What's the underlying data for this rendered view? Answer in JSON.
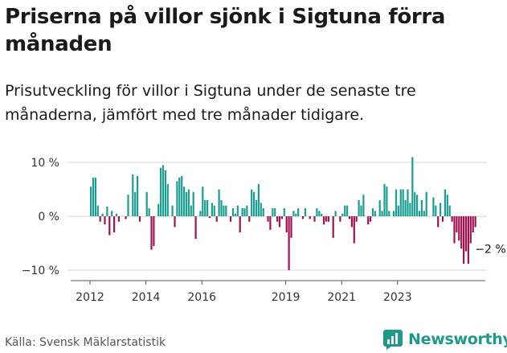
{
  "title": "Priserna på villor sjönk i Sigtuna förra månaden",
  "subtitle": "Prisutveckling för villor i Sigtuna under de senaste tre månaderna, jämfört med tre månader tidigare.",
  "source": "Källa: Svensk Mäklarstatistik",
  "brand": "Newsworthy",
  "colors": {
    "positive": "#1a9e91",
    "negative": "#a3114f",
    "brand": "#1e9a8a"
  },
  "chart_data": {
    "type": "bar",
    "x_start": "2012-01",
    "y_ticks": [
      10,
      0,
      -10
    ],
    "y_tick_labels": [
      "10 %",
      "0 %",
      "−10 %"
    ],
    "x_ticks": [
      "2012",
      "2014",
      "2016",
      "2019",
      "2021",
      "2023"
    ],
    "ylim": [
      -11,
      11.5
    ],
    "annotation": "−2 %",
    "values": [
      5.5,
      7.2,
      7.2,
      2,
      -1,
      0.5,
      -1.5,
      1.8,
      -3.5,
      1,
      -3,
      0.5,
      -1,
      0,
      0,
      -0.5,
      4,
      0,
      7.8,
      4.5,
      7.5,
      -1,
      0,
      0,
      4.5,
      1.5,
      -6.2,
      -5.5,
      0,
      2.3,
      9,
      9.5,
      8.5,
      6,
      0,
      2,
      -2,
      6.5,
      7.2,
      7.5,
      5.5,
      4.5,
      5,
      2,
      4.5,
      -4.2,
      0,
      1,
      5.5,
      3,
      3,
      -0.3,
      2.5,
      2,
      -1,
      5,
      3,
      2,
      2,
      0,
      -1,
      1.5,
      0.5,
      2,
      -3,
      1.5,
      1.5,
      2,
      -1,
      5,
      4.5,
      3,
      6,
      2.5,
      1.5,
      0,
      -1,
      -2.5,
      1.5,
      1.5,
      -1,
      -2,
      -0.5,
      1.5,
      -3,
      -10,
      -4,
      1,
      0.5,
      1.5,
      0,
      -0.5,
      1.5,
      0,
      -0.5,
      0,
      -1,
      1.5,
      1,
      0.5,
      -1.5,
      -1,
      -1,
      0,
      -4,
      1,
      0,
      -1,
      0.5,
      2,
      2,
      -0.5,
      -2,
      -5,
      -1,
      3,
      2,
      4,
      0,
      -1.5,
      -1,
      1.5,
      1,
      0,
      3,
      1,
      6,
      5.5,
      1,
      0,
      1,
      5,
      2,
      5,
      5,
      3,
      5,
      2.5,
      11,
      4.5,
      4,
      1,
      3,
      1,
      4.5,
      0,
      0,
      3.5,
      2,
      -2,
      2.5,
      -1,
      5,
      4,
      2,
      -1,
      -5,
      -3,
      -4.5,
      -6,
      -8.8,
      -6.5,
      -8.8,
      -5,
      -3,
      -2
    ]
  }
}
